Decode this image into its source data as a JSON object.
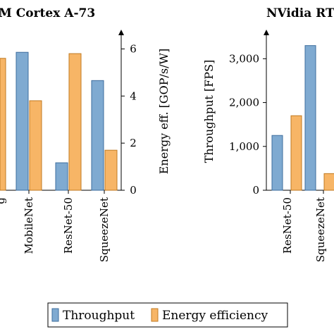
{
  "chart_data": [
    {
      "type": "bar",
      "title": "M Cortex A-73",
      "categories": [
        "MobileNet",
        "ResNet-50",
        "SqueezeNet"
      ],
      "series": [
        {
          "name": "Throughput",
          "values": [
            null,
            null,
            null
          ]
        },
        {
          "name": "Energy efficiency",
          "values": [
            3.8,
            5.8,
            1.7
          ]
        }
      ],
      "clipped_partial_values": {
        "energy_efficiency_first_visible": 5.6
      },
      "ylabel_right": "Energy eff. [GOP/s/W]",
      "yticks_right": [
        "0",
        "2",
        "4",
        "6"
      ],
      "ylim_right": [
        0,
        6.7
      ]
    },
    {
      "type": "bar",
      "title": "NVidia RT",
      "categories": [
        "ResNet-50",
        "SqueezeNet"
      ],
      "series": [
        {
          "name": "Throughput",
          "values": [
            1250,
            3300
          ]
        },
        {
          "name": "Energy efficiency",
          "values": [
            1700,
            380
          ]
        }
      ],
      "ylabel": "Throughput [FPS]",
      "yticks": [
        "0",
        "1,000",
        "2,000",
        "3,000"
      ],
      "ylim": [
        0,
        3600
      ]
    }
  ],
  "legend": {
    "items": [
      {
        "label": "Throughput",
        "color": "#7FAAD1"
      },
      {
        "label": "Energy efficiency",
        "color": "#F7B566"
      }
    ]
  },
  "colors": {
    "throughput": "#7FAAD1",
    "energy": "#F7B566"
  }
}
